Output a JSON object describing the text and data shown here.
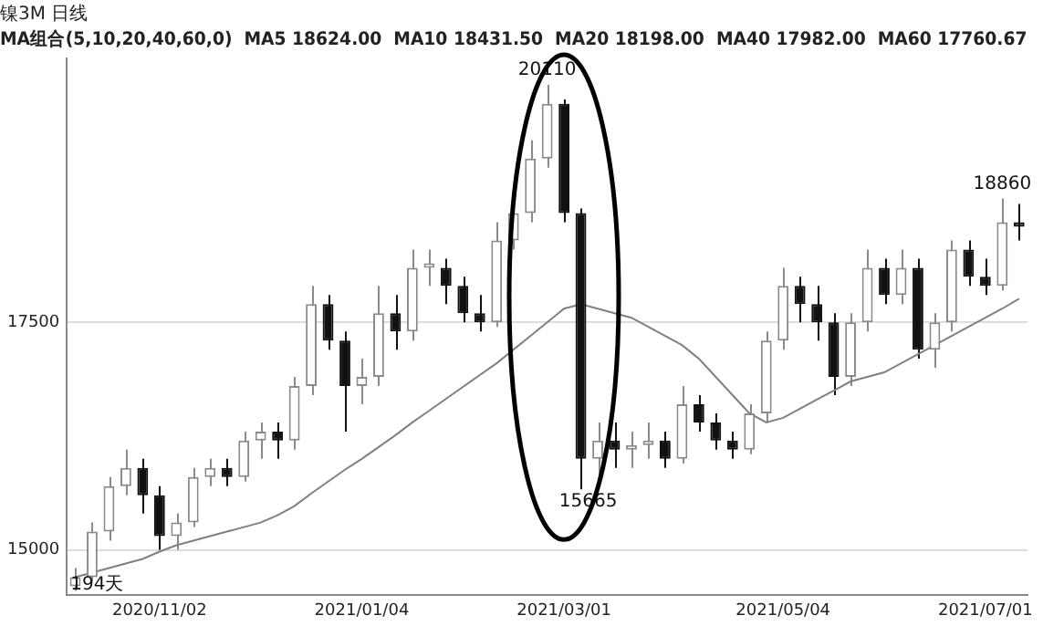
{
  "chart_data": {
    "type": "candlestick",
    "title": "镍3M 日线",
    "subtitle": "MA组合(5,10,20,40,60,0)  MA5 18624.00  MA10 18431.50  MA20 18198.00  MA40 17982.00  MA60 17760.67",
    "categories": [
      null,
      null,
      null,
      null,
      null,
      "2020/11/02",
      null,
      null,
      null,
      null,
      null,
      null,
      null,
      null,
      null,
      null,
      null,
      "2021/01/04",
      null,
      null,
      null,
      null,
      null,
      null,
      null,
      null,
      null,
      null,
      null,
      "2021/03/01",
      null,
      null,
      null,
      null,
      null,
      null,
      null,
      null,
      null,
      null,
      null,
      null,
      "2021/05/04",
      null,
      null,
      null,
      null,
      null,
      null,
      null,
      null,
      null,
      null,
      null,
      "2021/07/01",
      null,
      null
    ],
    "ohlc": [
      [
        14600,
        14800,
        14550,
        14700
      ],
      [
        14700,
        15300,
        14650,
        15200
      ],
      [
        15200,
        15800,
        15100,
        15700
      ],
      [
        15700,
        16100,
        15600,
        15900
      ],
      [
        15900,
        16000,
        15400,
        15600
      ],
      [
        15600,
        15700,
        15000,
        15150
      ],
      [
        15150,
        15400,
        15000,
        15300
      ],
      [
        15300,
        15900,
        15250,
        15800
      ],
      [
        15800,
        16000,
        15700,
        15900
      ],
      [
        15900,
        16000,
        15700,
        15800
      ],
      [
        15800,
        16300,
        15750,
        16200
      ],
      [
        16200,
        16400,
        16000,
        16300
      ],
      [
        16300,
        16400,
        16000,
        16200
      ],
      [
        16200,
        16900,
        16100,
        16800
      ],
      [
        16800,
        17900,
        16700,
        17700
      ],
      [
        17700,
        17800,
        17200,
        17300
      ],
      [
        17300,
        17400,
        16300,
        16800
      ],
      [
        16800,
        17100,
        16600,
        16900
      ],
      [
        16900,
        17900,
        16800,
        17600
      ],
      [
        17600,
        17800,
        17200,
        17400
      ],
      [
        17400,
        18300,
        17300,
        18100
      ],
      [
        18100,
        18300,
        17900,
        18150
      ],
      [
        18100,
        18200,
        17700,
        17900
      ],
      [
        17900,
        18000,
        17500,
        17600
      ],
      [
        17600,
        17800,
        17400,
        17500
      ],
      [
        17500,
        18600,
        17450,
        18400
      ],
      [
        18400,
        18800,
        18300,
        18700
      ],
      [
        18700,
        19500,
        18600,
        19300
      ],
      [
        19300,
        20110,
        19200,
        19900
      ],
      [
        19900,
        19950,
        18600,
        18700
      ],
      [
        18700,
        18750,
        15665,
        16000
      ],
      [
        16000,
        16400,
        15800,
        16200
      ],
      [
        16200,
        16400,
        15900,
        16100
      ],
      [
        16100,
        16300,
        15900,
        16150
      ],
      [
        16150,
        16400,
        16000,
        16200
      ],
      [
        16200,
        16300,
        15900,
        16000
      ],
      [
        16000,
        16800,
        15950,
        16600
      ],
      [
        16600,
        16700,
        16300,
        16400
      ],
      [
        16400,
        16500,
        16100,
        16200
      ],
      [
        16200,
        16300,
        16000,
        16100
      ],
      [
        16100,
        16600,
        16050,
        16500
      ],
      [
        16500,
        17400,
        16400,
        17300
      ],
      [
        17300,
        18100,
        17200,
        17900
      ],
      [
        17900,
        18000,
        17500,
        17700
      ],
      [
        17700,
        17900,
        17300,
        17500
      ],
      [
        17500,
        17600,
        16700,
        16900
      ],
      [
        16900,
        17600,
        16800,
        17500
      ],
      [
        17500,
        18300,
        17400,
        18100
      ],
      [
        18100,
        18200,
        17700,
        17800
      ],
      [
        17800,
        18300,
        17700,
        18100
      ],
      [
        18100,
        18200,
        17100,
        17200
      ],
      [
        17200,
        17600,
        17000,
        17500
      ],
      [
        17500,
        18400,
        17400,
        18300
      ],
      [
        18300,
        18400,
        17900,
        18000
      ],
      [
        18000,
        18200,
        17800,
        17900
      ],
      [
        17900,
        18860,
        17850,
        18600
      ],
      [
        18600,
        18800,
        18400,
        18550
      ]
    ],
    "series": [
      {
        "type": "line",
        "color": "#808080",
        "values": [
          14700,
          14750,
          14800,
          14850,
          14900,
          14980,
          15050,
          15100,
          15150,
          15200,
          15250,
          15300,
          15380,
          15480,
          15620,
          15750,
          15880,
          16000,
          16130,
          16260,
          16400,
          16530,
          16660,
          16790,
          16920,
          17050,
          17200,
          17350,
          17500,
          17650,
          17700,
          17650,
          17600,
          17550,
          17450,
          17350,
          17250,
          17100,
          16900,
          16700,
          16500,
          16400,
          16450,
          16550,
          16650,
          16750,
          16850,
          16900,
          16950,
          17050,
          17150,
          17250,
          17350,
          17450,
          17550,
          17650,
          17760
        ]
      }
    ],
    "marker": "none",
    "ylim": [
      14500,
      20400
    ],
    "yticks": [
      15000,
      17500
    ],
    "grid": "y",
    "annotations": [
      {
        "text": "20110",
        "y": 20110
      },
      {
        "text": "15665",
        "y": 15665
      },
      {
        "text": "18860",
        "y": 18860
      },
      "194天"
    ]
  }
}
